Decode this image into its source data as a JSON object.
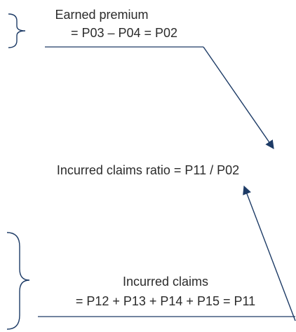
{
  "earned_premium": {
    "label": "Earned premium",
    "formula": "= P03 – P04 = P02"
  },
  "ratio": {
    "label": "Incurred claims ratio = P11 / P02"
  },
  "incurred_claims": {
    "label": "Incurred claims",
    "formula": "= P12 + P13 + P14 + P15 = P11"
  }
}
